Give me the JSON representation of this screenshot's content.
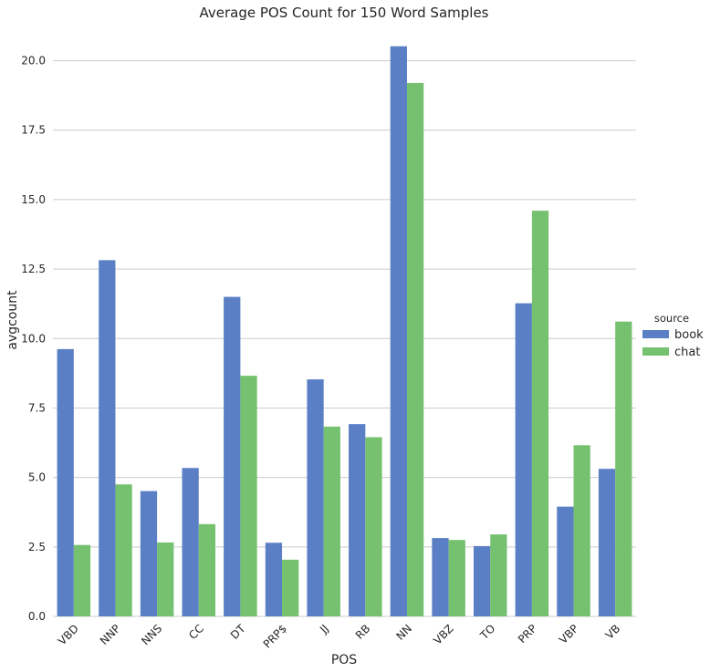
{
  "chart_data": {
    "type": "bar",
    "title": "Average POS Count for 150 Word Samples",
    "xlabel": "POS",
    "ylabel": "avgcount",
    "ylim": [
      0,
      21.2
    ],
    "yticks": [
      "0.0",
      "2.5",
      "5.0",
      "7.5",
      "10.0",
      "12.5",
      "15.0",
      "17.5",
      "20.0"
    ],
    "categories": [
      "VBD",
      "NNP",
      "NNS",
      "CC",
      "DT",
      "PRP$",
      "JJ",
      "RB",
      "NN",
      "VBZ",
      "TO",
      "PRP",
      "VBP",
      "VB"
    ],
    "series": [
      {
        "name": "book",
        "color": "#5b7fc5",
        "values": [
          9.62,
          12.82,
          4.51,
          5.34,
          11.5,
          2.65,
          8.53,
          6.92,
          20.52,
          2.82,
          2.53,
          11.27,
          3.95,
          5.31
        ]
      },
      {
        "name": "chat",
        "color": "#76c170",
        "values": [
          2.57,
          4.75,
          2.66,
          3.32,
          8.66,
          2.04,
          6.83,
          6.45,
          19.2,
          2.75,
          2.95,
          14.6,
          6.16,
          10.61
        ]
      }
    ],
    "legend": {
      "title": "source",
      "placement": "right"
    },
    "grid": "horizontal"
  }
}
